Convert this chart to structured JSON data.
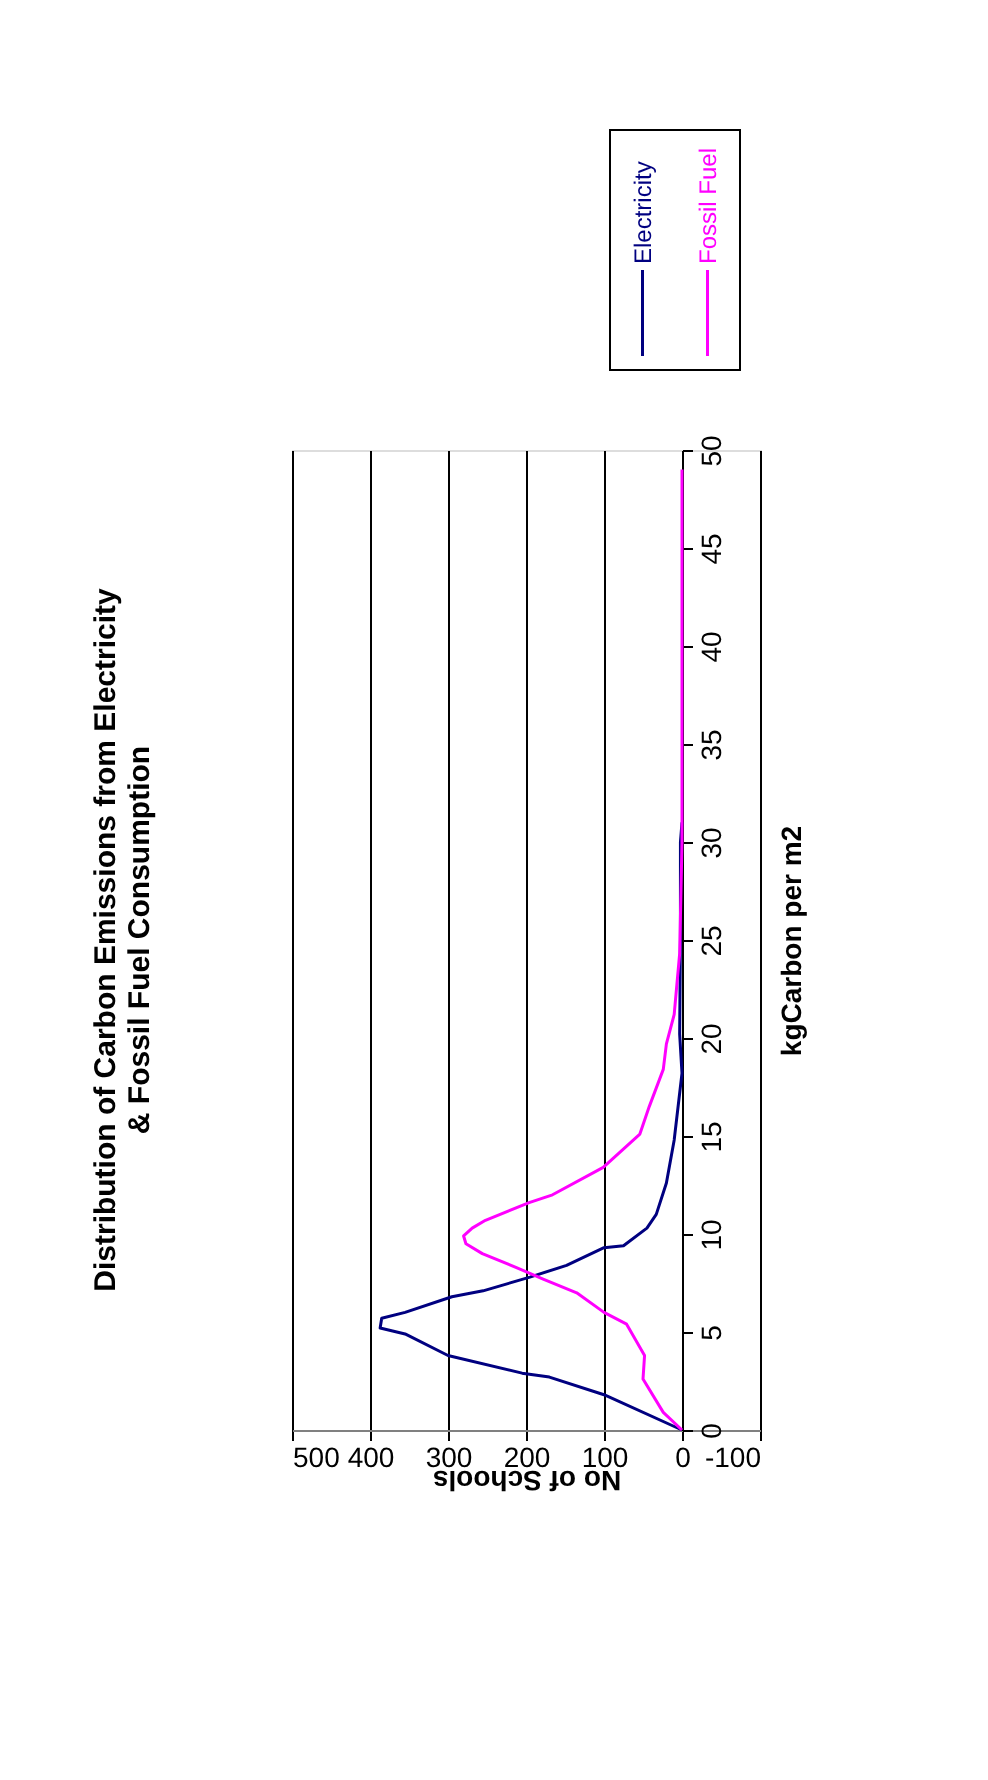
{
  "chart_data": {
    "type": "line",
    "title": [
      "Distribution of Carbon Emissions from Electricity",
      "& Fossil Fuel Consumption"
    ],
    "xlabel": "No of Schools",
    "ylabel": "kgCarbon per m2",
    "xlim": [
      500,
      -100
    ],
    "xticks": [
      500,
      400,
      300,
      200,
      100,
      0,
      -100
    ],
    "ylim": [
      0,
      50
    ],
    "yticks": [
      0,
      5,
      10,
      15,
      20,
      25,
      30,
      35,
      40,
      45,
      50
    ],
    "grid": "x",
    "legend": "right",
    "marker": "none",
    "line_style": "solid",
    "series": [
      {
        "name": "Electricity",
        "color": "#000080",
        "x": [
          0,
          100,
          170,
          205,
          300,
          355,
          387,
          385,
          355,
          295,
          255,
          195,
          148,
          100,
          75,
          45,
          33,
          20,
          10,
          0,
          3,
          2,
          2,
          0
        ],
        "values": [
          0,
          1.8,
          2.7,
          2.9,
          3.8,
          4.9,
          5.2,
          5.7,
          6.0,
          6.8,
          7.1,
          7.8,
          8.4,
          9.3,
          9.4,
          10.3,
          11,
          12.6,
          14.8,
          18.2,
          20.2,
          25,
          30,
          31
        ]
      },
      {
        "name": "Fossil Fuel",
        "color": "#ff00ff",
        "x": [
          0,
          24,
          50,
          48,
          71,
          100,
          135,
          178,
          213,
          256,
          277,
          280,
          269,
          252,
          196,
          166,
          101,
          54,
          42,
          24,
          20,
          10,
          3,
          0,
          0,
          0
        ],
        "values": [
          0,
          0.9,
          2.6,
          3.8,
          5.4,
          6,
          7,
          7.7,
          8.3,
          9.0,
          9.5,
          9.9,
          10.3,
          10.7,
          11.6,
          12,
          13.4,
          15.1,
          16.5,
          18.4,
          19.7,
          21.2,
          24.3,
          30,
          40,
          49
        ]
      }
    ]
  }
}
